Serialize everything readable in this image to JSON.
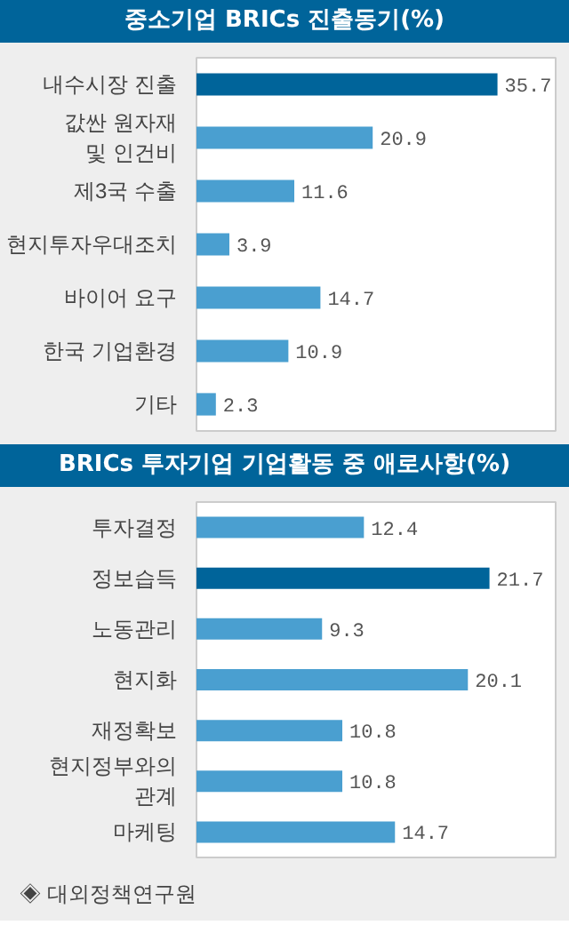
{
  "chart_data": [
    {
      "type": "bar",
      "orientation": "horizontal",
      "title": "중소기업 BRICs 진출동기(%)",
      "categories": [
        "내수시장 진출",
        "값싼 원자재\n및 인건비",
        "제3국 수출",
        "현지투자우대조치",
        "바이어 요구",
        "한국 기업환경",
        "기타"
      ],
      "values": [
        35.7,
        20.9,
        11.6,
        3.9,
        14.7,
        10.9,
        2.3
      ],
      "colors": [
        "#00649a",
        "#4a9fd0",
        "#4a9fd0",
        "#4a9fd0",
        "#4a9fd0",
        "#4a9fd0",
        "#4a9fd0"
      ],
      "xlim": [
        0,
        42.6
      ],
      "data_labels": true,
      "tick_labels": "y",
      "grid": false
    },
    {
      "type": "bar",
      "orientation": "horizontal",
      "title": "BRICs 투자기업 기업활동 중 애로사항(%)",
      "categories": [
        "투자결정",
        "정보습득",
        "노동관리",
        "현지화",
        "재정확보",
        "현지정부와의\n관계",
        "마케팅"
      ],
      "values": [
        12.4,
        21.7,
        9.3,
        20.1,
        10.8,
        10.8,
        14.7
      ],
      "colors": [
        "#4a9fd0",
        "#00649a",
        "#4a9fd0",
        "#4a9fd0",
        "#4a9fd0",
        "#4a9fd0",
        "#4a9fd0"
      ],
      "xlim": [
        0,
        26.6
      ],
      "data_labels": true,
      "tick_labels": "y",
      "grid": false,
      "annotations": [
        "◈ 대외정책연구원"
      ]
    }
  ]
}
